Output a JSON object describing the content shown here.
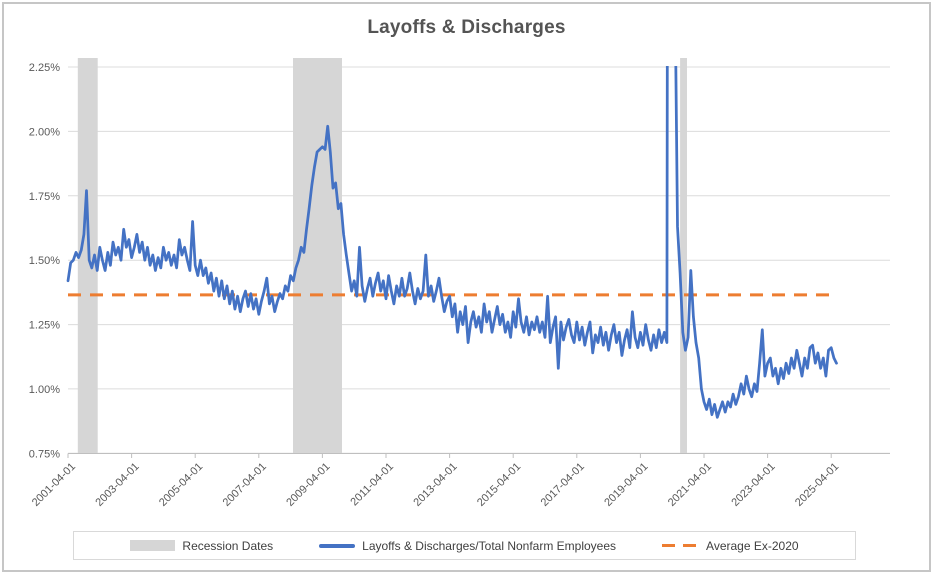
{
  "chart_data": {
    "type": "line",
    "title": "Layoffs & Discharges",
    "x_monthly_start": "2001-04",
    "x_monthly_end": "2025-06",
    "x_tick_every_months": 24,
    "x_tick_labels": [
      "2001-04-01",
      "2003-04-01",
      "2005-04-01",
      "2007-04-01",
      "2009-04-01",
      "2011-04-01",
      "2013-04-01",
      "2015-04-01",
      "2017-04-01",
      "2019-04-01",
      "2021-04-01",
      "2023-04-01",
      "2025-04-01"
    ],
    "y_tick_values": [
      2.25,
      2.0,
      1.75,
      1.5,
      1.25,
      1.0,
      0.75
    ],
    "y_tick_labels": [
      "2.25%",
      "2.00%",
      "1.75%",
      "1.50%",
      "1.25%",
      "1.00%",
      "0.75%"
    ],
    "ylim": [
      0.75,
      2.25
    ],
    "clip_series_at_y_max": true,
    "grid": "horizontal",
    "legend_position": "bottom",
    "series": [
      {
        "name": "Layoffs & Discharges/Total Nonfarm Employees",
        "color": "#4472C4",
        "style": "solid",
        "monthly_values_pct": [
          1.42,
          1.49,
          1.5,
          1.53,
          1.51,
          1.54,
          1.6,
          1.77,
          1.5,
          1.47,
          1.52,
          1.46,
          1.55,
          1.5,
          1.46,
          1.53,
          1.48,
          1.57,
          1.52,
          1.55,
          1.5,
          1.62,
          1.55,
          1.58,
          1.51,
          1.55,
          1.6,
          1.53,
          1.57,
          1.5,
          1.55,
          1.48,
          1.52,
          1.46,
          1.51,
          1.47,
          1.55,
          1.5,
          1.53,
          1.48,
          1.52,
          1.47,
          1.58,
          1.52,
          1.55,
          1.5,
          1.46,
          1.65,
          1.48,
          1.44,
          1.5,
          1.44,
          1.47,
          1.41,
          1.45,
          1.38,
          1.43,
          1.36,
          1.42,
          1.35,
          1.4,
          1.33,
          1.38,
          1.31,
          1.36,
          1.3,
          1.35,
          1.38,
          1.32,
          1.37,
          1.31,
          1.35,
          1.29,
          1.34,
          1.38,
          1.43,
          1.33,
          1.36,
          1.3,
          1.34,
          1.37,
          1.35,
          1.4,
          1.38,
          1.44,
          1.42,
          1.47,
          1.5,
          1.55,
          1.53,
          1.62,
          1.7,
          1.79,
          1.86,
          1.92,
          1.93,
          1.94,
          1.93,
          2.02,
          1.92,
          1.78,
          1.8,
          1.7,
          1.72,
          1.6,
          1.52,
          1.45,
          1.38,
          1.42,
          1.36,
          1.55,
          1.4,
          1.34,
          1.39,
          1.43,
          1.36,
          1.41,
          1.45,
          1.38,
          1.42,
          1.35,
          1.44,
          1.38,
          1.33,
          1.4,
          1.36,
          1.43,
          1.36,
          1.39,
          1.45,
          1.38,
          1.33,
          1.39,
          1.35,
          1.38,
          1.52,
          1.36,
          1.4,
          1.34,
          1.38,
          1.43,
          1.36,
          1.3,
          1.34,
          1.36,
          1.28,
          1.33,
          1.22,
          1.3,
          1.25,
          1.32,
          1.18,
          1.26,
          1.3,
          1.24,
          1.28,
          1.22,
          1.33,
          1.26,
          1.3,
          1.22,
          1.27,
          1.32,
          1.25,
          1.29,
          1.22,
          1.26,
          1.2,
          1.3,
          1.24,
          1.35,
          1.26,
          1.22,
          1.28,
          1.21,
          1.26,
          1.23,
          1.28,
          1.22,
          1.26,
          1.2,
          1.36,
          1.18,
          1.24,
          1.28,
          1.08,
          1.26,
          1.19,
          1.24,
          1.27,
          1.21,
          1.18,
          1.26,
          1.19,
          1.24,
          1.17,
          1.22,
          1.26,
          1.14,
          1.21,
          1.18,
          1.24,
          1.17,
          1.22,
          1.15,
          1.21,
          1.25,
          1.18,
          1.22,
          1.13,
          1.19,
          1.23,
          1.16,
          1.3,
          1.2,
          1.16,
          1.22,
          1.17,
          1.25,
          1.19,
          1.15,
          1.21,
          1.16,
          1.23,
          1.18,
          1.22,
          1.18,
          8.2,
          5.9,
          2.6,
          1.63,
          1.45,
          1.22,
          1.15,
          1.2,
          1.46,
          1.28,
          1.18,
          1.12,
          1.0,
          0.95,
          0.92,
          0.96,
          0.9,
          0.94,
          0.89,
          0.92,
          0.95,
          0.91,
          0.95,
          0.93,
          0.98,
          0.94,
          0.97,
          1.02,
          0.98,
          1.05,
          1.0,
          0.97,
          1.02,
          0.99,
          1.1,
          1.23,
          1.05,
          1.1,
          1.12,
          1.05,
          1.08,
          1.02,
          1.08,
          1.04,
          1.1,
          1.06,
          1.12,
          1.08,
          1.15,
          1.1,
          1.05,
          1.12,
          1.08,
          1.16,
          1.17,
          1.1,
          1.14,
          1.08,
          1.12,
          1.05,
          1.15,
          1.16,
          1.12,
          1.1
        ]
      },
      {
        "name": "Average Ex-2020",
        "color": "#ED7D31",
        "style": "dashed",
        "value_pct": 1.365
      }
    ],
    "recession_bands": [
      {
        "name": "2001 recession",
        "start_month_index": 3.7,
        "end_month_index": 11.2
      },
      {
        "name": "2008-2009 recession",
        "start_month_index": 84.9,
        "end_month_index": 103.4
      },
      {
        "name": "2020 recession",
        "start_month_index": 231.0,
        "end_month_index": 233.6
      }
    ],
    "legend": [
      {
        "label": "Recession Dates",
        "swatch": "gray-box",
        "color": "#D6D6D6"
      },
      {
        "label": "Layoffs & Discharges/Total Nonfarm Employees",
        "swatch": "line",
        "color": "#4472C4"
      },
      {
        "label": "Average Ex-2020",
        "swatch": "dashed-line",
        "color": "#ED7D31"
      }
    ],
    "colors": {
      "series_blue": "#4472C4",
      "average_orange": "#ED7D31",
      "recession_band": "#D6D6D6",
      "gridline": "#DCDCDC",
      "axis_line": "#BFBFBF",
      "axis_text": "#595959",
      "title_text": "#545454",
      "legend_text": "#404040",
      "legend_border": "#D9D9D9",
      "frame_border": "#C6C6C6"
    }
  }
}
